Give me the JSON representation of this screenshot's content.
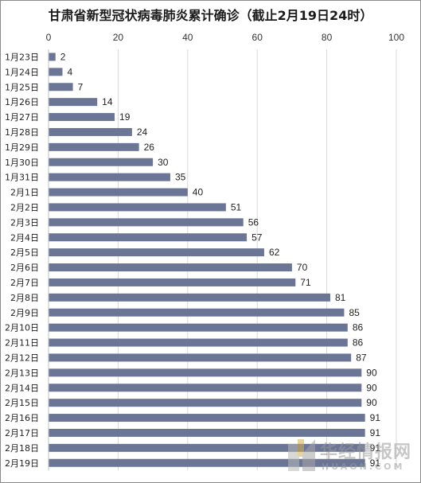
{
  "chart_data": {
    "type": "bar",
    "orientation": "horizontal",
    "title": "甘肃省新型冠状病毒肺炎累计确诊（截止2月19日24时）",
    "xlim": [
      0,
      100
    ],
    "x_ticks": [
      "0",
      "20",
      "40",
      "60",
      "80",
      "100"
    ],
    "gridlines": "vertical",
    "bar_color": "#6b7596",
    "categories": [
      "1月23日",
      "1月24日",
      "1月25日",
      "1月26日",
      "1月27日",
      "1月28日",
      "1月29日",
      "1月30日",
      "1月31日",
      "2月1日",
      "2月2日",
      "2月3日",
      "2月4日",
      "2月5日",
      "2月6日",
      "2月7日",
      "2月8日",
      "2月9日",
      "2月10日",
      "2月11日",
      "2月12日",
      "2月13日",
      "2月14日",
      "2月15日",
      "2月16日",
      "2月17日",
      "2月18日",
      "2月19日"
    ],
    "values": [
      2,
      4,
      7,
      14,
      19,
      24,
      26,
      30,
      35,
      40,
      51,
      56,
      57,
      62,
      70,
      71,
      81,
      85,
      86,
      86,
      87,
      90,
      90,
      90,
      91,
      91,
      91,
      91
    ]
  },
  "watermark": {
    "text_cn": "华经情报网",
    "text_en": "HUAON.COM",
    "logo": "huaon-logo-icon"
  }
}
